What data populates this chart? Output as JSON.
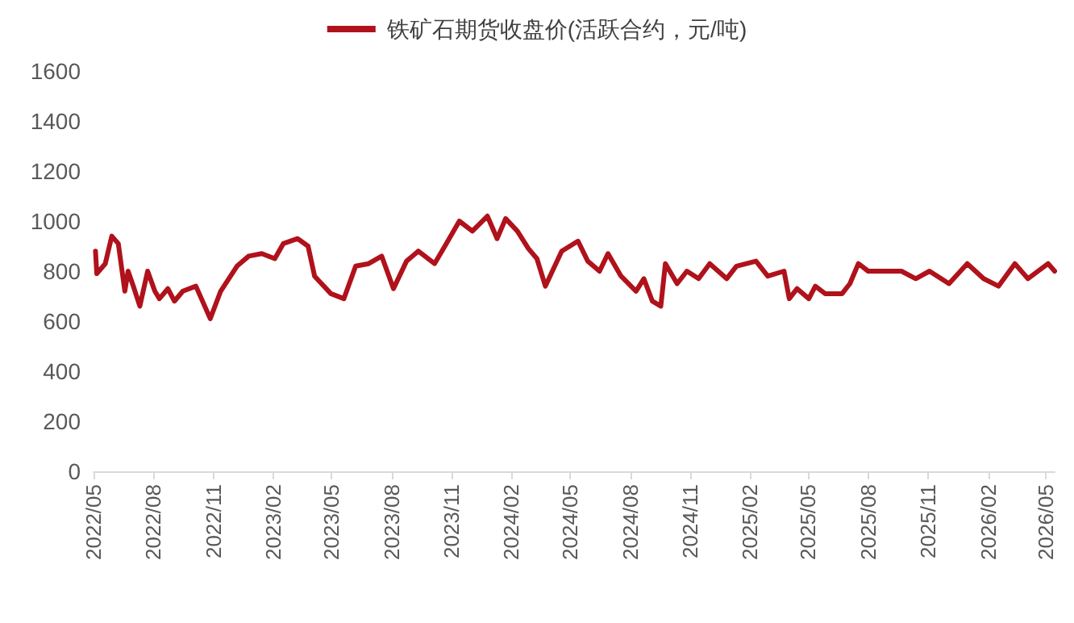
{
  "chart_data": {
    "type": "line",
    "legend": "top",
    "grid": false,
    "marker": "none",
    "line_style": "solid",
    "xlim": [
      "2022-05-01",
      "2026-05-14"
    ],
    "xticks": [
      {
        "value": "2022-05-01",
        "label": "2022/05"
      },
      {
        "value": "2022-08-01",
        "label": "2022/08"
      },
      {
        "value": "2022-11-01",
        "label": "2022/11"
      },
      {
        "value": "2023-02-01",
        "label": "2023/02"
      },
      {
        "value": "2023-05-01",
        "label": "2023/05"
      },
      {
        "value": "2023-08-01",
        "label": "2023/08"
      },
      {
        "value": "2023-11-01",
        "label": "2023/11"
      },
      {
        "value": "2024-02-01",
        "label": "2024/02"
      },
      {
        "value": "2024-05-01",
        "label": "2024/05"
      },
      {
        "value": "2024-08-01",
        "label": "2024/08"
      },
      {
        "value": "2024-11-01",
        "label": "2024/11"
      },
      {
        "value": "2025-02-01",
        "label": "2025/02"
      },
      {
        "value": "2025-05-01",
        "label": "2025/05"
      },
      {
        "value": "2025-08-01",
        "label": "2025/08"
      },
      {
        "value": "2025-11-01",
        "label": "2025/11"
      },
      {
        "value": "2026-02-01",
        "label": "2026/02"
      },
      {
        "value": "2026-05-01",
        "label": "2026/05"
      }
    ],
    "ylim": [
      0,
      1600
    ],
    "yticks": [
      0,
      200,
      400,
      600,
      800,
      1000,
      1200,
      1400,
      1600
    ],
    "x": [
      "2022-05-04",
      "2022-05-06",
      "2022-05-19",
      "2022-05-29",
      "2022-06-08",
      "2022-06-18",
      "2022-06-23",
      "2022-07-01",
      "2022-07-11",
      "2022-07-23",
      "2022-08-03",
      "2022-08-10",
      "2022-08-23",
      "2022-09-02",
      "2022-09-15",
      "2022-10-05",
      "2022-10-27",
      "2022-11-12",
      "2022-12-07",
      "2022-12-25",
      "2023-01-14",
      "2023-02-03",
      "2023-02-16",
      "2023-03-10",
      "2023-03-26",
      "2023-04-05",
      "2023-04-30",
      "2023-05-20",
      "2023-06-07",
      "2023-06-27",
      "2023-07-17",
      "2023-08-04",
      "2023-08-24",
      "2023-09-11",
      "2023-10-06",
      "2023-10-24",
      "2023-11-13",
      "2023-12-03",
      "2023-12-26",
      "2024-01-10",
      "2024-01-23",
      "2024-02-10",
      "2024-02-27",
      "2024-03-11",
      "2024-03-24",
      "2024-04-18",
      "2024-05-13",
      "2024-05-28",
      "2024-06-15",
      "2024-06-28",
      "2024-07-18",
      "2024-08-10",
      "2024-08-22",
      "2024-09-04",
      "2024-09-17",
      "2024-09-24",
      "2024-10-12",
      "2024-10-27",
      "2024-11-14",
      "2024-12-01",
      "2024-12-27",
      "2025-01-11",
      "2025-02-10",
      "2025-02-28",
      "2025-03-25",
      "2025-04-02",
      "2025-04-14",
      "2025-05-02",
      "2025-05-12",
      "2025-05-27",
      "2025-06-22",
      "2025-07-04",
      "2025-07-17",
      "2025-08-01",
      "2025-08-26",
      "2025-09-21",
      "2025-10-13",
      "2025-11-03",
      "2025-12-03",
      "2025-12-31",
      "2026-01-25",
      "2026-02-17",
      "2026-03-14",
      "2026-04-03",
      "2026-05-04",
      "2026-05-14"
    ],
    "series": [
      {
        "name": "铁矿石期货收盘价(活跃合约，元/吨)",
        "color": "#b0121b",
        "values": [
          880,
          790,
          830,
          940,
          910,
          720,
          800,
          740,
          660,
          800,
          720,
          690,
          730,
          680,
          720,
          740,
          610,
          720,
          820,
          860,
          870,
          850,
          910,
          930,
          900,
          780,
          710,
          690,
          820,
          830,
          860,
          730,
          840,
          880,
          830,
          910,
          1000,
          960,
          1020,
          930,
          1010,
          960,
          890,
          850,
          740,
          880,
          920,
          840,
          800,
          870,
          780,
          720,
          770,
          680,
          660,
          830,
          750,
          800,
          770,
          830,
          770,
          820,
          840,
          780,
          800,
          690,
          730,
          690,
          740,
          710,
          710,
          750,
          830,
          800,
          800,
          800,
          770,
          800,
          750,
          830,
          770,
          740,
          830,
          770,
          830,
          800
        ]
      }
    ]
  }
}
